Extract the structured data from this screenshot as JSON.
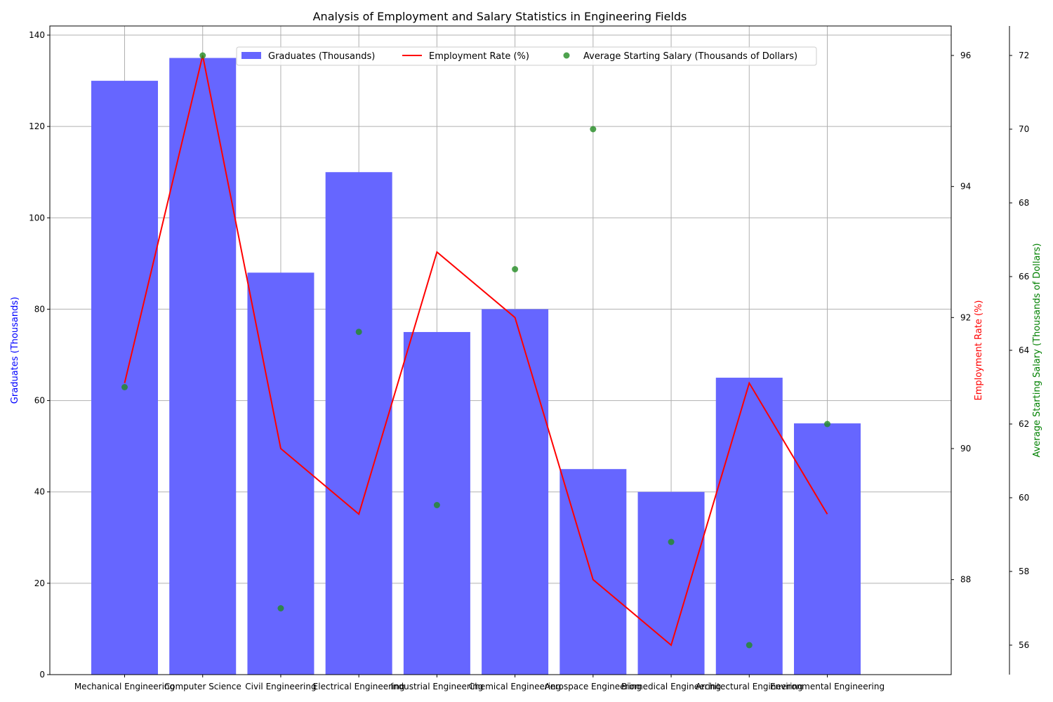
{
  "chart_data": {
    "type": "bar",
    "title": "Analysis of Employment and Salary Statistics in Engineering Fields",
    "categories": [
      "Mechanical Engineering",
      "Computer Science",
      "Civil Engineering",
      "Electrical Engineering",
      "Industrial Engineering",
      "Chemical Engineering",
      "Aerospace Engineering",
      "Biomedical Engineering",
      "Architectural Engineering",
      "Environmental Engineering"
    ],
    "series": [
      {
        "name": "Graduates (Thousands)",
        "type": "bar",
        "axis": "left",
        "color": "#6666ff",
        "values": [
          130,
          135,
          88,
          110,
          75,
          80,
          45,
          40,
          65,
          55
        ]
      },
      {
        "name": "Employment Rate (%)",
        "type": "line",
        "axis": "right",
        "color": "#ff0000",
        "values": [
          91,
          96,
          90,
          89,
          93,
          92,
          88,
          87,
          91,
          89
        ]
      },
      {
        "name": "Average Starting Salary (Thousands of Dollars)",
        "type": "scatter",
        "axis": "right-outer",
        "color": "#228b22",
        "values": [
          63,
          72,
          57,
          64.5,
          59.8,
          66.2,
          70,
          58.8,
          56,
          62
        ]
      }
    ],
    "axes": {
      "left": {
        "label": "Graduates (Thousands)",
        "color": "#0000ff",
        "ylim": [
          0,
          142
        ],
        "ticks": [
          0,
          20,
          40,
          60,
          80,
          100,
          120,
          140
        ]
      },
      "right": {
        "label": "Employment Rate (%)",
        "color": "#ff0000",
        "ylim": [
          86.55,
          96.45
        ],
        "ticks": [
          88,
          90,
          92,
          94,
          96
        ]
      },
      "right_outer": {
        "label": "Average Starting Salary (Thousands of Dollars)",
        "color": "#008000",
        "ylim": [
          55.2,
          72.8
        ],
        "ticks": [
          56,
          58,
          60,
          62,
          64,
          66,
          68,
          70,
          72
        ]
      }
    },
    "grid": true,
    "legend_position": "upper-center"
  }
}
